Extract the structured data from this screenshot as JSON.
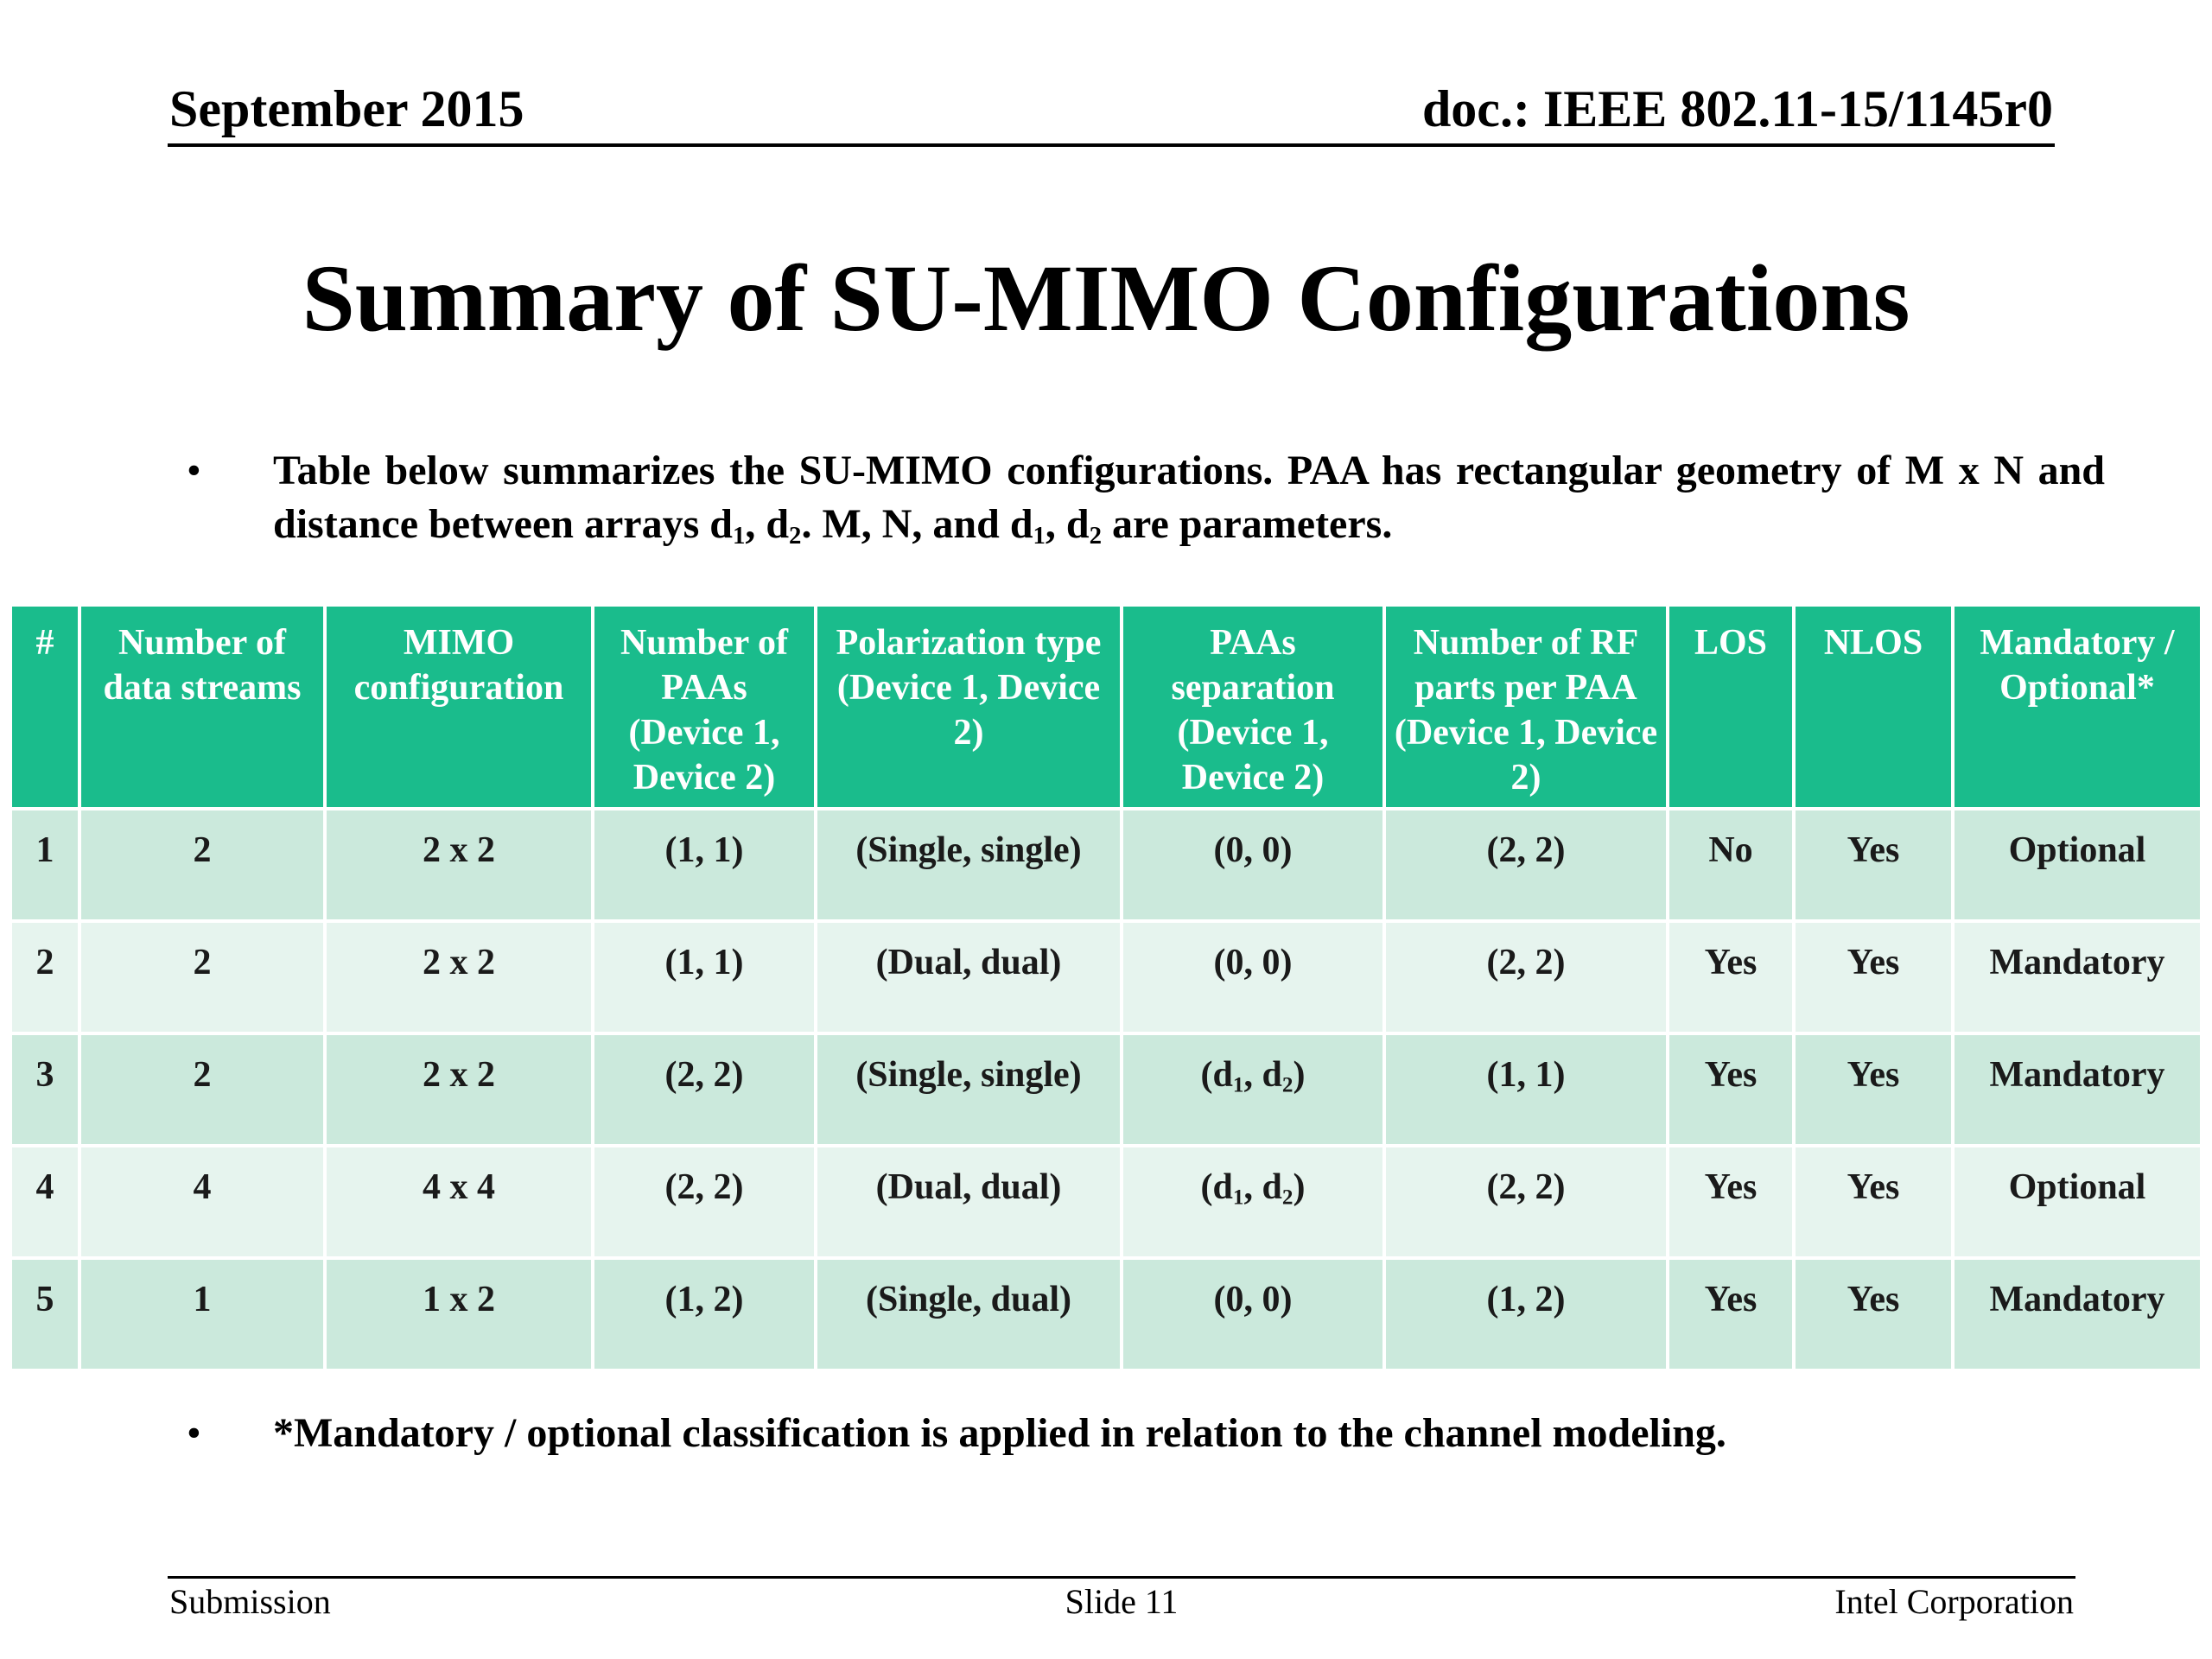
{
  "header": {
    "date": "September 2015",
    "doc_id": "doc.: IEEE 802.11-15/1145r0"
  },
  "title": "Summary of SU-MIMO Configurations",
  "intro": {
    "bullet": "•",
    "text_a": "Table below summarizes the SU-MIMO configurations. PAA has rectangular geometry of M x N and distance between arrays d",
    "sub1": "1",
    "text_b": ", d",
    "sub2": "2",
    "text_c": ". M, N, and d",
    "sub3": "1",
    "text_d": ", d",
    "sub4": "2",
    "text_e": " are parameters."
  },
  "table": {
    "headers": [
      "#",
      "Number of data streams",
      "MIMO configuration",
      "Number of PAAs (Device 1, Device 2)",
      "Polarization type (Device 1, Device 2)",
      "PAAs separation (Device 1, Device 2)",
      "Number of RF parts per PAA (Device 1, Device 2)",
      "LOS",
      "NLOS",
      "Mandatory / Optional*"
    ],
    "rows": [
      {
        "num": "1",
        "streams": "2",
        "config": "2 x 2",
        "paas": "(1, 1)",
        "polarization": "(Single, single)",
        "sep": {
          "plain": "(0, 0)",
          "a": "",
          "s1": "",
          "b": "",
          "s2": "",
          "c": ""
        },
        "rf": "(2, 2)",
        "los": "No",
        "nlos": "Yes",
        "mandatory": "Optional"
      },
      {
        "num": "2",
        "streams": "2",
        "config": "2 x 2",
        "paas": "(1, 1)",
        "polarization": "(Dual, dual)",
        "sep": {
          "plain": "(0, 0)",
          "a": "",
          "s1": "",
          "b": "",
          "s2": "",
          "c": ""
        },
        "rf": "(2, 2)",
        "los": "Yes",
        "nlos": "Yes",
        "mandatory": "Mandatory"
      },
      {
        "num": "3",
        "streams": "2",
        "config": "2 x 2",
        "paas": "(2, 2)",
        "polarization": "(Single, single)",
        "sep": {
          "plain": "",
          "a": "(d",
          "s1": "1",
          "b": ", d",
          "s2": "2",
          "c": ")"
        },
        "rf": "(1, 1)",
        "los": "Yes",
        "nlos": "Yes",
        "mandatory": "Mandatory"
      },
      {
        "num": "4",
        "streams": "4",
        "config": "4 x 4",
        "paas": "(2, 2)",
        "polarization": "(Dual, dual)",
        "sep": {
          "plain": "",
          "a": "(d",
          "s1": "1",
          "b": ", d",
          "s2": "2",
          "c": ")"
        },
        "rf": "(2, 2)",
        "los": "Yes",
        "nlos": "Yes",
        "mandatory": "Optional"
      },
      {
        "num": "5",
        "streams": "1",
        "config": "1 x 2",
        "paas": "(1, 2)",
        "polarization": "(Single, dual)",
        "sep": {
          "plain": "(0, 0)",
          "a": "",
          "s1": "",
          "b": "",
          "s2": "",
          "c": ""
        },
        "rf": "(1, 2)",
        "los": "Yes",
        "nlos": "Yes",
        "mandatory": "Mandatory"
      }
    ]
  },
  "footnote": {
    "bullet": "•",
    "text": "*Mandatory / optional classification is applied in relation to the channel modeling."
  },
  "footer": {
    "left": "Submission",
    "center": "Slide 11",
    "right": "Intel Corporation"
  },
  "colors": {
    "header_bg": "#1abc8c",
    "row_odd_bg": "#cbe9dc",
    "row_even_bg": "#e6f4ee"
  }
}
